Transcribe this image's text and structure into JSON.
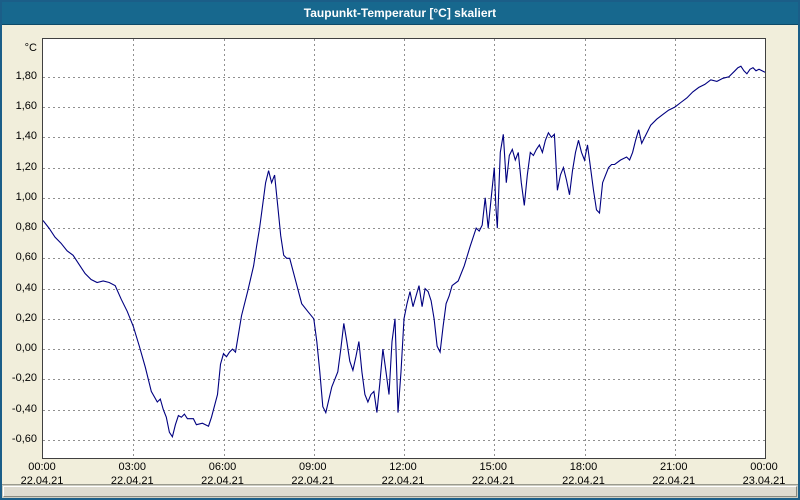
{
  "window": {
    "title": "Taupunkt-Temperatur [°C] skaliert"
  },
  "colors": {
    "titlebar": "#17688e",
    "window_border": "#1b5e88",
    "background": "#f1eedb",
    "plot_background": "#ffffff",
    "grid": "#909090",
    "line": "#000080",
    "text": "#000000"
  },
  "chart_data": {
    "type": "line",
    "title": "Taupunkt-Temperatur [°C] skaliert",
    "xlabel": "",
    "ylabel": "°C",
    "grid": true,
    "legend": false,
    "x_axis": {
      "range_hours": [
        0,
        24
      ],
      "tick_hours": [
        0,
        3,
        6,
        9,
        12,
        15,
        18,
        21,
        24
      ],
      "tick_labels": [
        "00:00",
        "03:00",
        "06:00",
        "09:00",
        "12:00",
        "15:00",
        "18:00",
        "21:00",
        "00:00"
      ],
      "date_labels": [
        "22.04.21",
        "22.04.21",
        "22.04.21",
        "22.04.21",
        "22.04.21",
        "22.04.21",
        "22.04.21",
        "22.04.21",
        "23.04.21"
      ]
    },
    "y_axis": {
      "range": [
        -0.72,
        2.05
      ],
      "ticks": [
        1.8,
        1.6,
        1.4,
        1.2,
        1.0,
        0.8,
        0.6,
        0.4,
        0.2,
        0.0,
        -0.2,
        -0.4,
        -0.6
      ],
      "tick_labels": [
        "1,80",
        "1,60",
        "1,40",
        "1,20",
        "1,00",
        "0,80",
        "0,60",
        "0,40",
        "0,20",
        "0,00",
        "-0,20",
        "-0,40",
        "-0,60"
      ]
    },
    "series": [
      {
        "name": "Taupunkt-Temperatur",
        "color": "#000080",
        "points": [
          [
            0.0,
            0.85
          ],
          [
            0.2,
            0.8
          ],
          [
            0.4,
            0.74
          ],
          [
            0.6,
            0.7
          ],
          [
            0.8,
            0.65
          ],
          [
            1.0,
            0.62
          ],
          [
            1.2,
            0.56
          ],
          [
            1.4,
            0.5
          ],
          [
            1.6,
            0.46
          ],
          [
            1.8,
            0.44
          ],
          [
            2.0,
            0.45
          ],
          [
            2.2,
            0.44
          ],
          [
            2.4,
            0.42
          ],
          [
            2.6,
            0.33
          ],
          [
            2.8,
            0.25
          ],
          [
            3.0,
            0.15
          ],
          [
            3.2,
            0.02
          ],
          [
            3.4,
            -0.12
          ],
          [
            3.6,
            -0.28
          ],
          [
            3.8,
            -0.35
          ],
          [
            3.9,
            -0.33
          ],
          [
            4.0,
            -0.4
          ],
          [
            4.1,
            -0.45
          ],
          [
            4.2,
            -0.55
          ],
          [
            4.3,
            -0.58
          ],
          [
            4.4,
            -0.5
          ],
          [
            4.5,
            -0.44
          ],
          [
            4.6,
            -0.45
          ],
          [
            4.7,
            -0.43
          ],
          [
            4.8,
            -0.46
          ],
          [
            5.0,
            -0.46
          ],
          [
            5.1,
            -0.5
          ],
          [
            5.3,
            -0.49
          ],
          [
            5.5,
            -0.51
          ],
          [
            5.6,
            -0.45
          ],
          [
            5.8,
            -0.3
          ],
          [
            5.9,
            -0.1
          ],
          [
            6.0,
            -0.03
          ],
          [
            6.1,
            -0.05
          ],
          [
            6.2,
            -0.02
          ],
          [
            6.3,
            0.0
          ],
          [
            6.4,
            -0.02
          ],
          [
            6.5,
            0.1
          ],
          [
            6.6,
            0.22
          ],
          [
            6.8,
            0.38
          ],
          [
            7.0,
            0.55
          ],
          [
            7.1,
            0.68
          ],
          [
            7.2,
            0.8
          ],
          [
            7.3,
            0.95
          ],
          [
            7.4,
            1.1
          ],
          [
            7.5,
            1.18
          ],
          [
            7.6,
            1.1
          ],
          [
            7.7,
            1.15
          ],
          [
            7.8,
            0.95
          ],
          [
            7.9,
            0.75
          ],
          [
            8.0,
            0.62
          ],
          [
            8.1,
            0.6
          ],
          [
            8.2,
            0.6
          ],
          [
            8.4,
            0.45
          ],
          [
            8.6,
            0.3
          ],
          [
            8.8,
            0.25
          ],
          [
            9.0,
            0.2
          ],
          [
            9.1,
            0.05
          ],
          [
            9.2,
            -0.15
          ],
          [
            9.3,
            -0.38
          ],
          [
            9.4,
            -0.42
          ],
          [
            9.6,
            -0.25
          ],
          [
            9.8,
            -0.15
          ],
          [
            9.9,
            0.0
          ],
          [
            10.0,
            0.17
          ],
          [
            10.1,
            0.05
          ],
          [
            10.2,
            -0.08
          ],
          [
            10.3,
            -0.14
          ],
          [
            10.4,
            -0.05
          ],
          [
            10.5,
            0.05
          ],
          [
            10.6,
            -0.15
          ],
          [
            10.7,
            -0.3
          ],
          [
            10.8,
            -0.35
          ],
          [
            10.9,
            -0.3
          ],
          [
            11.0,
            -0.28
          ],
          [
            11.1,
            -0.42
          ],
          [
            11.2,
            -0.22
          ],
          [
            11.3,
            0.0
          ],
          [
            11.4,
            -0.15
          ],
          [
            11.5,
            -0.3
          ],
          [
            11.6,
            0.05
          ],
          [
            11.7,
            0.2
          ],
          [
            11.75,
            -0.1
          ],
          [
            11.8,
            -0.42
          ],
          [
            11.9,
            -0.15
          ],
          [
            12.0,
            0.2
          ],
          [
            12.1,
            0.3
          ],
          [
            12.2,
            0.38
          ],
          [
            12.3,
            0.28
          ],
          [
            12.4,
            0.35
          ],
          [
            12.5,
            0.42
          ],
          [
            12.6,
            0.28
          ],
          [
            12.7,
            0.4
          ],
          [
            12.8,
            0.38
          ],
          [
            12.9,
            0.32
          ],
          [
            13.0,
            0.2
          ],
          [
            13.1,
            0.02
          ],
          [
            13.2,
            -0.02
          ],
          [
            13.3,
            0.15
          ],
          [
            13.4,
            0.3
          ],
          [
            13.5,
            0.35
          ],
          [
            13.6,
            0.42
          ],
          [
            13.8,
            0.45
          ],
          [
            14.0,
            0.55
          ],
          [
            14.2,
            0.68
          ],
          [
            14.4,
            0.8
          ],
          [
            14.5,
            0.78
          ],
          [
            14.6,
            0.82
          ],
          [
            14.7,
            1.0
          ],
          [
            14.8,
            0.8
          ],
          [
            14.9,
            1.0
          ],
          [
            15.0,
            1.2
          ],
          [
            15.05,
            0.95
          ],
          [
            15.1,
            0.8
          ],
          [
            15.2,
            1.3
          ],
          [
            15.3,
            1.42
          ],
          [
            15.4,
            1.1
          ],
          [
            15.5,
            1.28
          ],
          [
            15.6,
            1.32
          ],
          [
            15.7,
            1.25
          ],
          [
            15.8,
            1.3
          ],
          [
            15.9,
            1.1
          ],
          [
            16.0,
            0.95
          ],
          [
            16.1,
            1.15
          ],
          [
            16.2,
            1.3
          ],
          [
            16.3,
            1.28
          ],
          [
            16.4,
            1.32
          ],
          [
            16.5,
            1.35
          ],
          [
            16.6,
            1.3
          ],
          [
            16.7,
            1.38
          ],
          [
            16.8,
            1.43
          ],
          [
            16.9,
            1.4
          ],
          [
            17.0,
            1.42
          ],
          [
            17.1,
            1.05
          ],
          [
            17.2,
            1.15
          ],
          [
            17.3,
            1.2
          ],
          [
            17.4,
            1.12
          ],
          [
            17.5,
            1.02
          ],
          [
            17.6,
            1.18
          ],
          [
            17.7,
            1.3
          ],
          [
            17.8,
            1.38
          ],
          [
            17.9,
            1.3
          ],
          [
            18.0,
            1.25
          ],
          [
            18.1,
            1.35
          ],
          [
            18.2,
            1.2
          ],
          [
            18.3,
            1.05
          ],
          [
            18.4,
            0.92
          ],
          [
            18.5,
            0.9
          ],
          [
            18.6,
            1.1
          ],
          [
            18.7,
            1.15
          ],
          [
            18.8,
            1.2
          ],
          [
            18.9,
            1.22
          ],
          [
            19.0,
            1.22
          ],
          [
            19.2,
            1.25
          ],
          [
            19.4,
            1.27
          ],
          [
            19.5,
            1.25
          ],
          [
            19.6,
            1.3
          ],
          [
            19.7,
            1.38
          ],
          [
            19.8,
            1.45
          ],
          [
            19.9,
            1.36
          ],
          [
            20.0,
            1.4
          ],
          [
            20.2,
            1.48
          ],
          [
            20.4,
            1.52
          ],
          [
            20.6,
            1.55
          ],
          [
            20.8,
            1.58
          ],
          [
            21.0,
            1.6
          ],
          [
            21.2,
            1.63
          ],
          [
            21.4,
            1.66
          ],
          [
            21.6,
            1.7
          ],
          [
            21.8,
            1.73
          ],
          [
            22.0,
            1.75
          ],
          [
            22.2,
            1.78
          ],
          [
            22.4,
            1.77
          ],
          [
            22.6,
            1.79
          ],
          [
            22.8,
            1.8
          ],
          [
            23.0,
            1.84
          ],
          [
            23.1,
            1.86
          ],
          [
            23.2,
            1.87
          ],
          [
            23.3,
            1.84
          ],
          [
            23.4,
            1.82
          ],
          [
            23.5,
            1.85
          ],
          [
            23.6,
            1.86
          ],
          [
            23.7,
            1.84
          ],
          [
            23.8,
            1.85
          ],
          [
            23.9,
            1.84
          ],
          [
            24.0,
            1.83
          ]
        ]
      }
    ]
  }
}
